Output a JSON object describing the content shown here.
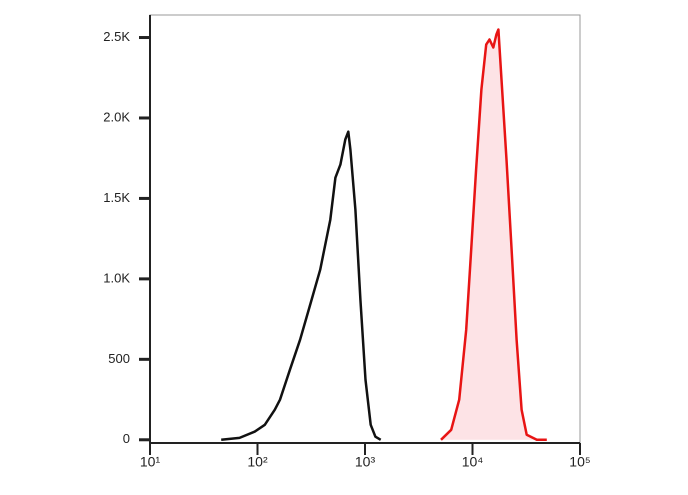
{
  "chart_data": {
    "type": "histogram-overlay",
    "xscale": "log",
    "xlim": [
      10,
      100000
    ],
    "xticks": [
      {
        "value": 10,
        "label": "10¹"
      },
      {
        "value": 100,
        "label": "10²"
      },
      {
        "value": 1000,
        "label": "10³"
      },
      {
        "value": 10000,
        "label": "10⁴"
      },
      {
        "value": 100000,
        "label": "10⁵"
      }
    ],
    "ylim": [
      -20,
      2640
    ],
    "yticks": [
      0,
      500,
      {
        "value": 1000,
        "label": "1.0K"
      },
      {
        "value": 1500,
        "label": "1.5K"
      },
      {
        "value": 2000,
        "label": "2.0K"
      },
      {
        "value": 2500,
        "label": "2.5K"
      }
    ],
    "series": [
      {
        "color": "#111111",
        "fill": null,
        "x": [
          46,
          68,
          94,
          117,
          145,
          162,
          200,
          249,
          309,
          383,
          476,
          530,
          590,
          656,
          700,
          731,
          815,
          907,
          1010,
          1130,
          1250,
          1400
        ],
        "values": [
          0,
          12,
          50,
          93,
          187,
          249,
          435,
          622,
          840,
          1057,
          1368,
          1629,
          1710,
          1866,
          1915,
          1803,
          1430,
          871,
          373,
          93,
          19,
          0
        ]
      },
      {
        "color": "#e81414",
        "fill": "#fde3e6",
        "x": [
          5090,
          6330,
          7520,
          8740,
          9730,
          10800,
          12100,
          13400,
          14400,
          15600,
          16700,
          17400,
          18600,
          20700,
          23100,
          25700,
          28600,
          31900,
          39600,
          49100
        ],
        "values": [
          0,
          62,
          249,
          684,
          1182,
          1679,
          2177,
          2456,
          2488,
          2438,
          2519,
          2550,
          2239,
          1741,
          1182,
          622,
          187,
          31,
          0,
          0
        ]
      }
    ]
  }
}
